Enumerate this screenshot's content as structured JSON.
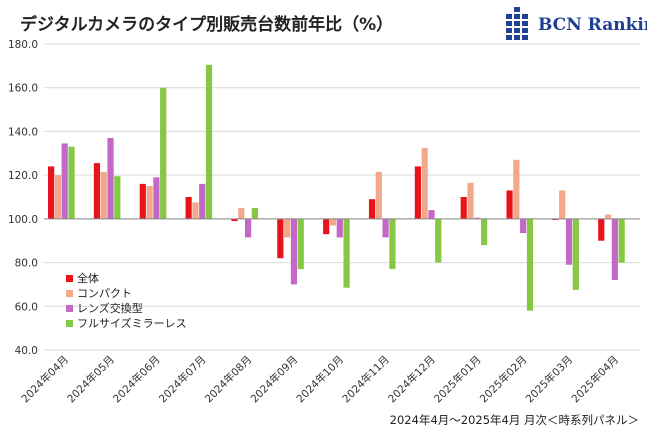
{
  "title": "デジタルカメラのタイプ別販売台数前年比（%）",
  "logo": {
    "text": "BCN Ranking",
    "icon": "bcn-grid-logo-icon"
  },
  "footer": "2024年4月～2025年4月 月次＜時系列パネル＞",
  "chart_data": {
    "type": "bar",
    "title": "デジタルカメラのタイプ別販売台数前年比（%）",
    "categories": [
      "2024年04月",
      "2024年05月",
      "2024年06月",
      "2024年07月",
      "2024年08月",
      "2024年09月",
      "2024年10月",
      "2024年11月",
      "2024年12月",
      "2025年01月",
      "2025年02月",
      "2025年03月",
      "2025年04月"
    ],
    "ylim": [
      40,
      180
    ],
    "yticks": [
      "180.0",
      "160.0",
      "140.0",
      "120.0",
      "100.0",
      "80.0",
      "60.0",
      "40.0"
    ],
    "baseline": 100,
    "grid": true,
    "legend": "lower-left",
    "series": [
      {
        "name": "全体",
        "color": "#e8141c",
        "values": [
          124.0,
          125.5,
          116.0,
          110.0,
          99.0,
          82.0,
          93.0,
          109.0,
          124.0,
          110.0,
          113.0,
          99.5,
          90.0
        ]
      },
      {
        "name": "コンパクト",
        "color": "#f2a98b",
        "values": [
          120.0,
          121.5,
          115.0,
          107.5,
          105.0,
          91.5,
          97.0,
          121.5,
          132.5,
          116.5,
          127.0,
          113.0,
          102.0
        ]
      },
      {
        "name": "レンズ交換型",
        "color": "#c468c8",
        "values": [
          134.5,
          137.0,
          119.0,
          116.0,
          91.5,
          70.0,
          91.5,
          91.5,
          104.0,
          100.5,
          93.5,
          79.0,
          72.0
        ]
      },
      {
        "name": "フルサイズミラーレス",
        "color": "#85c843",
        "values": [
          133.0,
          119.5,
          160.0,
          170.5,
          105.0,
          77.0,
          68.5,
          77.0,
          80.0,
          88.0,
          58.0,
          67.5,
          80.0
        ]
      }
    ]
  }
}
